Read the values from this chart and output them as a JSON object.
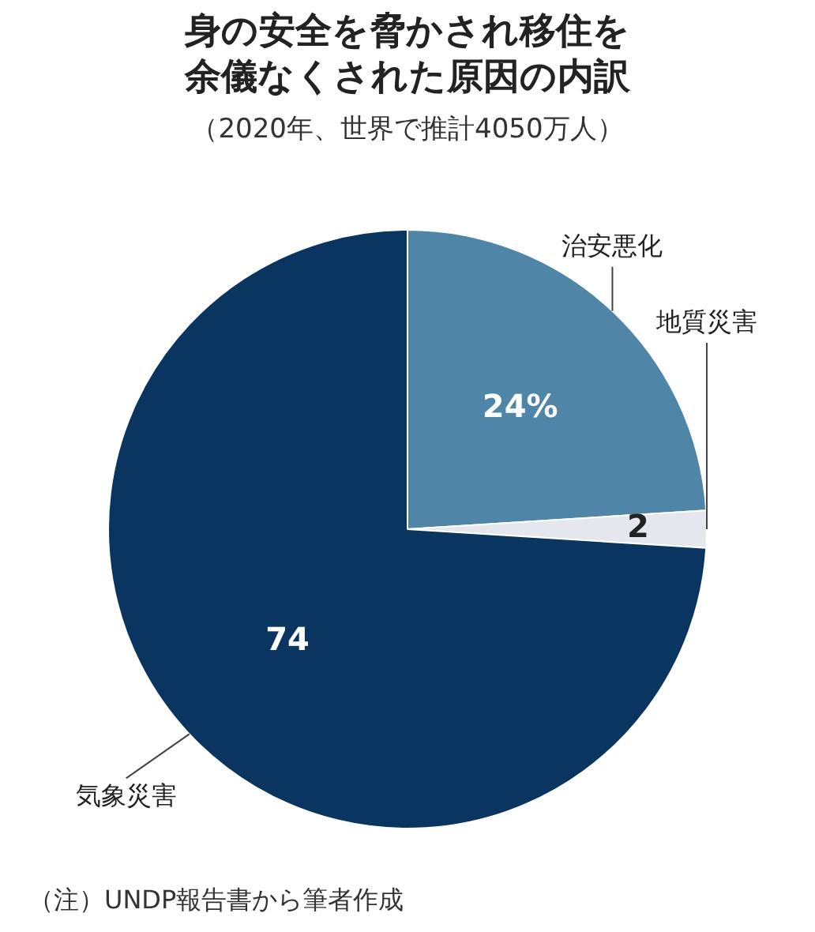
{
  "chart_data": {
    "type": "pie",
    "title": "身の安全を脅かされ移住を余儀なくされた原因の内訳",
    "subtitle": "（2020年、世界で推計4050万人）",
    "categories": [
      "治安悪化",
      "地質災害",
      "気象災害"
    ],
    "values": [
      24,
      2,
      74
    ],
    "value_labels": [
      "24%",
      "2",
      "74"
    ],
    "colors": [
      "#4f85a6",
      "#e4e7ee",
      "#0b3561"
    ],
    "legend": false,
    "annotations": [
      "（注）UNDP報告書から筆者作成"
    ]
  }
}
